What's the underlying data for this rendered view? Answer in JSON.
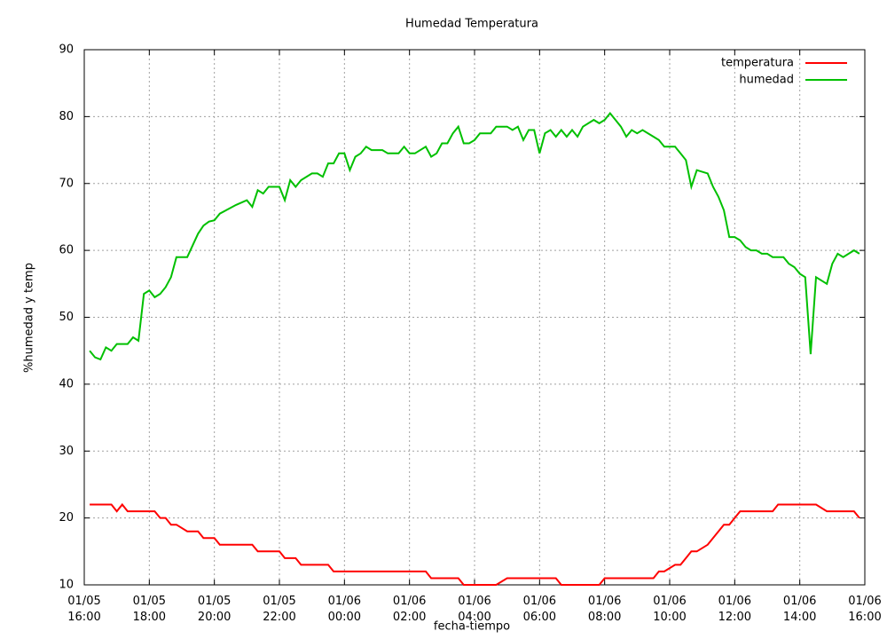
{
  "chart_data": {
    "type": "line",
    "title": "Humedad Temperatura",
    "xlabel": "fecha-tiempo",
    "ylabel": "%humedad y temp",
    "x": [
      "01/05 16:10",
      "01/05 16:20",
      "01/05 16:30",
      "01/05 16:40",
      "01/05 16:50",
      "01/05 17:00",
      "01/05 17:10",
      "01/05 17:20",
      "01/05 17:30",
      "01/05 17:40",
      "01/05 17:50",
      "01/05 18:00",
      "01/05 18:10",
      "01/05 18:20",
      "01/05 18:30",
      "01/05 18:40",
      "01/05 18:50",
      "01/05 19:10",
      "01/05 19:30",
      "01/05 19:40",
      "01/05 19:50",
      "01/05 20:00",
      "01/05 20:10",
      "01/05 20:40",
      "01/05 21:00",
      "01/05 21:10",
      "01/05 21:20",
      "01/05 21:30",
      "01/05 21:40",
      "01/05 22:00",
      "01/05 22:10",
      "01/05 22:20",
      "01/05 22:30",
      "01/05 22:40",
      "01/05 23:00",
      "01/05 23:10",
      "01/05 23:20",
      "01/05 23:30",
      "01/05 23:40",
      "01/05 23:50",
      "01/06 00:00",
      "01/06 00:10",
      "01/06 00:20",
      "01/06 00:30",
      "01/06 00:40",
      "01/06 00:50",
      "01/06 01:10",
      "01/06 01:20",
      "01/06 01:40",
      "01/06 01:50",
      "01/06 02:00",
      "01/06 02:10",
      "01/06 02:30",
      "01/06 02:40",
      "01/06 02:50",
      "01/06 03:00",
      "01/06 03:10",
      "01/06 03:20",
      "01/06 03:30",
      "01/06 03:40",
      "01/06 03:50",
      "01/06 04:00",
      "01/06 04:10",
      "01/06 04:30",
      "01/06 04:40",
      "01/06 05:00",
      "01/06 05:10",
      "01/06 05:20",
      "01/06 05:30",
      "01/06 05:40",
      "01/06 05:50",
      "01/06 06:00",
      "01/06 06:10",
      "01/06 06:20",
      "01/06 06:30",
      "01/06 06:40",
      "01/06 06:50",
      "01/06 07:00",
      "01/06 07:10",
      "01/06 07:20",
      "01/06 07:40",
      "01/06 07:50",
      "01/06 08:00",
      "01/06 08:10",
      "01/06 08:20",
      "01/06 08:30",
      "01/06 08:40",
      "01/06 08:50",
      "01/06 09:00",
      "01/06 09:10",
      "01/06 09:30",
      "01/06 09:40",
      "01/06 09:50",
      "01/06 10:10",
      "01/06 10:20",
      "01/06 10:30",
      "01/06 10:40",
      "01/06 10:50",
      "01/06 11:10",
      "01/06 11:20",
      "01/06 11:30",
      "01/06 11:40",
      "01/06 11:50",
      "01/06 12:00",
      "01/06 12:10",
      "01/06 12:20",
      "01/06 12:30",
      "01/06 12:40",
      "01/06 12:50",
      "01/06 13:00",
      "01/06 13:10",
      "01/06 13:20",
      "01/06 13:30",
      "01/06 13:40",
      "01/06 13:50",
      "01/06 14:00",
      "01/06 14:10",
      "01/06 14:20",
      "01/06 14:30",
      "01/06 14:50",
      "01/06 15:00",
      "01/06 15:10",
      "01/06 15:20",
      "01/06 15:40",
      "01/06 15:50"
    ],
    "series": [
      {
        "name": "temperatura",
        "color": "#ff0000",
        "values": [
          22,
          22,
          22,
          22,
          22,
          21,
          22,
          21,
          21,
          21,
          21,
          21,
          21,
          20,
          20,
          19,
          19,
          18,
          18,
          17,
          17,
          17,
          16,
          16,
          16,
          16,
          15,
          15,
          15,
          15,
          14,
          14,
          14,
          13,
          13,
          13,
          13,
          13,
          12,
          12,
          12,
          12,
          12,
          12,
          12,
          12,
          12,
          12,
          12,
          12,
          12,
          12,
          12,
          11,
          11,
          11,
          11,
          11,
          11,
          10,
          10,
          10,
          10,
          10,
          10,
          11,
          11,
          11,
          11,
          11,
          11,
          11,
          11,
          11,
          11,
          10,
          10,
          10,
          10,
          10,
          10,
          10,
          11,
          11,
          11,
          11,
          11,
          11,
          11,
          11,
          11,
          12,
          12,
          13,
          13,
          14,
          15,
          15,
          16,
          17,
          18,
          19,
          19,
          20,
          21,
          21,
          21,
          21,
          21,
          21,
          21,
          22,
          22,
          22,
          22,
          22,
          22,
          22,
          22,
          21,
          21,
          21,
          21,
          21,
          20
        ]
      },
      {
        "name": "humedad",
        "color": "#00c000",
        "values": [
          45,
          44,
          43.7,
          45.5,
          45,
          46,
          46,
          46,
          47,
          46.5,
          53.5,
          54,
          53,
          53.5,
          54.5,
          56,
          59,
          59,
          62.5,
          63.7,
          64.3,
          64.5,
          65.5,
          66.8,
          67.5,
          66.5,
          69,
          68.5,
          69.5,
          69.5,
          67.5,
          70.5,
          69.5,
          70.5,
          71.5,
          71.5,
          71,
          73,
          73,
          74.5,
          74.5,
          72,
          74,
          74.5,
          75.5,
          75,
          75,
          74.5,
          74.5,
          75.5,
          74.5,
          74.5,
          75.5,
          74,
          74.5,
          76,
          76,
          77.5,
          78.5,
          76,
          76,
          76.5,
          77.5,
          77.5,
          78.5,
          78.5,
          78,
          78.5,
          76.5,
          78,
          78,
          74.5,
          77.5,
          78,
          77,
          78,
          77,
          78,
          77,
          78.5,
          79.5,
          79,
          79.5,
          80.5,
          79.5,
          78.5,
          77,
          78,
          77.5,
          78,
          77,
          76.5,
          75.5,
          75.5,
          74.5,
          73.5,
          69.5,
          72,
          71.5,
          69.5,
          68,
          66,
          62,
          62,
          61.5,
          60.5,
          60,
          60,
          59.5,
          59.5,
          59,
          59,
          59,
          58,
          57.5,
          56.5,
          56,
          44.5,
          56,
          55,
          58,
          59.5,
          59,
          60,
          59.5
        ]
      }
    ],
    "xlim": [
      "01/05 16:00",
      "01/06 16:00"
    ],
    "xticks": [
      {
        "value": "01/05 16:00",
        "label": "01/05\n16:00"
      },
      {
        "value": "01/05 18:00",
        "label": "01/05\n18:00"
      },
      {
        "value": "01/05 20:00",
        "label": "01/05\n20:00"
      },
      {
        "value": "01/05 22:00",
        "label": "01/05\n22:00"
      },
      {
        "value": "01/06 00:00",
        "label": "01/06\n00:00"
      },
      {
        "value": "01/06 02:00",
        "label": "01/06\n02:00"
      },
      {
        "value": "01/06 04:00",
        "label": "01/06\n04:00"
      },
      {
        "value": "01/06 06:00",
        "label": "01/06\n06:00"
      },
      {
        "value": "01/06 08:00",
        "label": "01/06\n08:00"
      },
      {
        "value": "01/06 10:00",
        "label": "01/06\n10:00"
      },
      {
        "value": "01/06 12:00",
        "label": "01/06\n12:00"
      },
      {
        "value": "01/06 14:00",
        "label": "01/06\n14:00"
      },
      {
        "value": "01/06 16:00",
        "label": "01/06\n16:00"
      }
    ],
    "ylim": [
      10,
      90
    ],
    "yticks": [
      10,
      20,
      30,
      40,
      50,
      60,
      70,
      80,
      90
    ],
    "grid": true,
    "legend": "top-right"
  }
}
